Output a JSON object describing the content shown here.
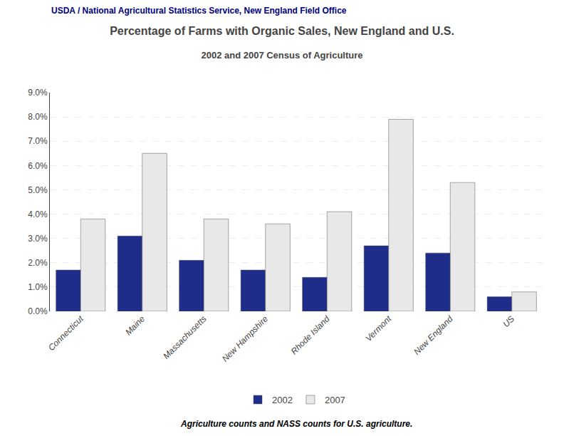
{
  "chart_data": {
    "type": "bar",
    "title": "Percentage of Farms with Organic Sales, New England and U.S.",
    "subtitle": "2002 and 2007 Census of Agriculture",
    "annotations": [
      "USDA / National Agricultural Statistics Service, New England Field Office",
      "Agriculture counts and NASS counts for U.S. agriculture."
    ],
    "categories": [
      "Connecticut",
      "Maine",
      "Massachusetts",
      "New Hampshire",
      "Rhode Island",
      "Vermont",
      "New England",
      "US"
    ],
    "series": [
      {
        "name": "2002",
        "color": "#1F2D8A",
        "values": [
          0.017,
          0.031,
          0.021,
          0.017,
          0.014,
          0.027,
          0.024,
          0.006
        ]
      },
      {
        "name": "2007",
        "color": "#E8E8E8",
        "values": [
          0.038,
          0.065,
          0.038,
          0.036,
          0.041,
          0.079,
          0.053,
          0.008
        ]
      }
    ],
    "ylim": [
      0,
      0.09
    ],
    "yticks": [
      {
        "value": 0.0,
        "label": "0.0%"
      },
      {
        "value": 0.01,
        "label": "1.0%"
      },
      {
        "value": 0.02,
        "label": "2.0%"
      },
      {
        "value": 0.03,
        "label": "3.0%"
      },
      {
        "value": 0.04,
        "label": "4.0%"
      },
      {
        "value": 0.05,
        "label": "5.0%"
      },
      {
        "value": 0.06,
        "label": "6.0%"
      },
      {
        "value": 0.07,
        "label": "7.0%"
      },
      {
        "value": 0.08,
        "label": "8.0%"
      },
      {
        "value": 0.09,
        "label": "9.0%"
      }
    ],
    "grid": true,
    "legend": "bottom"
  }
}
